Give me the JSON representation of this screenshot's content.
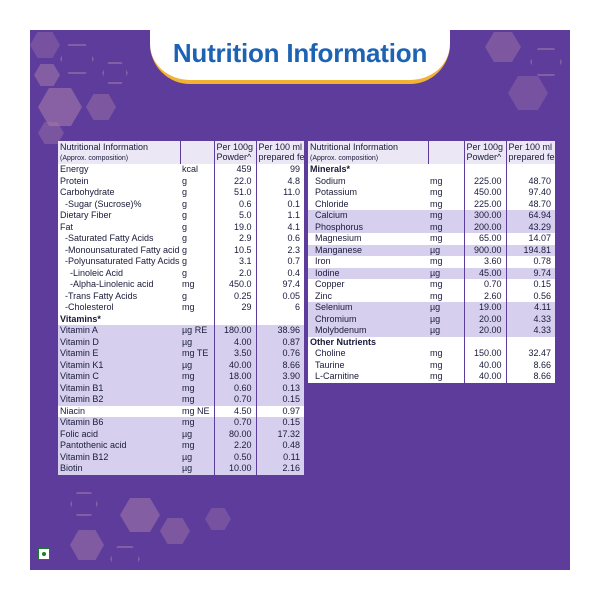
{
  "title": "Nutrition Information",
  "left_table": {
    "header": {
      "col1": "Nutritional Information",
      "col1_sub": "(Approx. composition)",
      "col2": "Per 100g",
      "col2b": "Powder^",
      "col3": "Per 100 ml",
      "col3b": "prepared feed"
    },
    "rows": [
      {
        "name": "Energy",
        "unit": "kcal",
        "v1": "459",
        "v2": "99",
        "style": "w"
      },
      {
        "name": "Protein",
        "unit": "g",
        "v1": "22.0",
        "v2": "4.8",
        "style": "w"
      },
      {
        "name": "Carbohydrate",
        "unit": "g",
        "v1": "51.0",
        "v2": "11.0",
        "style": "w"
      },
      {
        "name": "-Sugar (Sucrose)%",
        "unit": "g",
        "v1": "0.6",
        "v2": "0.1",
        "style": "w",
        "indent": 1
      },
      {
        "name": "Dietary Fiber",
        "unit": "g",
        "v1": "5.0",
        "v2": "1.1",
        "style": "w"
      },
      {
        "name": "Fat",
        "unit": "g",
        "v1": "19.0",
        "v2": "4.1",
        "style": "w"
      },
      {
        "name": "-Saturated Fatty Acids",
        "unit": "g",
        "v1": "2.9",
        "v2": "0.6",
        "style": "w",
        "indent": 1
      },
      {
        "name": "-Monounsaturated Fatty acids",
        "unit": "g",
        "v1": "10.5",
        "v2": "2.3",
        "style": "w",
        "indent": 1
      },
      {
        "name": "-Polyunsaturated Fatty Acids",
        "unit": "g",
        "v1": "3.1",
        "v2": "0.7",
        "style": "w",
        "indent": 1
      },
      {
        "name": "-Linoleic Acid",
        "unit": "g",
        "v1": "2.0",
        "v2": "0.4",
        "style": "w",
        "indent": 2
      },
      {
        "name": "-Alpha-Linolenic acid",
        "unit": "mg",
        "v1": "450.0",
        "v2": "97.4",
        "style": "w",
        "indent": 2
      },
      {
        "name": "-Trans Fatty Acids",
        "unit": "g",
        "v1": "0.25",
        "v2": "0.05",
        "style": "w",
        "indent": 1
      },
      {
        "name": "-Cholesterol",
        "unit": "mg",
        "v1": "29",
        "v2": "6",
        "style": "w",
        "indent": 1
      },
      {
        "name": "Vitamins*",
        "unit": "",
        "v1": "",
        "v2": "",
        "style": "h"
      },
      {
        "name": "Vitamin A",
        "unit": "µg RE",
        "v1": "180.00",
        "v2": "38.96",
        "style": "l"
      },
      {
        "name": "Vitamin D",
        "unit": "µg",
        "v1": "4.00",
        "v2": "0.87",
        "style": "l"
      },
      {
        "name": "Vitamin E",
        "unit": "mg TE",
        "v1": "3.50",
        "v2": "0.76",
        "style": "l"
      },
      {
        "name": "Vitamin K1",
        "unit": "µg",
        "v1": "40.00",
        "v2": "8.66",
        "style": "l"
      },
      {
        "name": "Vitamin C",
        "unit": "mg",
        "v1": "18.00",
        "v2": "3.90",
        "style": "l"
      },
      {
        "name": "Vitamin B1",
        "unit": "mg",
        "v1": "0.60",
        "v2": "0.13",
        "style": "l"
      },
      {
        "name": "Vitamin B2",
        "unit": "mg",
        "v1": "0.70",
        "v2": "0.15",
        "style": "l"
      },
      {
        "name": "Niacin",
        "unit": "mg NE",
        "v1": "4.50",
        "v2": "0.97",
        "style": "w"
      },
      {
        "name": "Vitamin B6",
        "unit": "mg",
        "v1": "0.70",
        "v2": "0.15",
        "style": "l"
      },
      {
        "name": "Folic acid",
        "unit": "µg",
        "v1": "80.00",
        "v2": "17.32",
        "style": "l"
      },
      {
        "name": "Pantothenic acid",
        "unit": "mg",
        "v1": "2.20",
        "v2": "0.48",
        "style": "l"
      },
      {
        "name": "Vitamin B12",
        "unit": "µg",
        "v1": "0.50",
        "v2": "0.11",
        "style": "l"
      },
      {
        "name": "Biotin",
        "unit": "µg",
        "v1": "10.00",
        "v2": "2.16",
        "style": "l"
      }
    ]
  },
  "right_table": {
    "header": {
      "col1": "Nutritional Information",
      "col1_sub": "(Approx. composition)",
      "col2": "Per 100g",
      "col2b": "Powder^",
      "col3": "Per 100 ml",
      "col3b": "prepared feed"
    },
    "rows": [
      {
        "name": "Minerals*",
        "unit": "",
        "v1": "",
        "v2": "",
        "style": "h"
      },
      {
        "name": "Sodium",
        "unit": "mg",
        "v1": "225.00",
        "v2": "48.70",
        "style": "w",
        "indent": 1
      },
      {
        "name": "Potassium",
        "unit": "mg",
        "v1": "450.00",
        "v2": "97.40",
        "style": "w",
        "indent": 1
      },
      {
        "name": "Chloride",
        "unit": "mg",
        "v1": "225.00",
        "v2": "48.70",
        "style": "w",
        "indent": 1
      },
      {
        "name": "Calcium",
        "unit": "mg",
        "v1": "300.00",
        "v2": "64.94",
        "style": "l",
        "indent": 1
      },
      {
        "name": "Phosphorus",
        "unit": "mg",
        "v1": "200.00",
        "v2": "43.29",
        "style": "l",
        "indent": 1
      },
      {
        "name": "Magnesium",
        "unit": "mg",
        "v1": "65.00",
        "v2": "14.07",
        "style": "w",
        "indent": 1
      },
      {
        "name": "Manganese",
        "unit": "µg",
        "v1": "900.00",
        "v2": "194.81",
        "style": "l",
        "indent": 1
      },
      {
        "name": "Iron",
        "unit": "mg",
        "v1": "3.60",
        "v2": "0.78",
        "style": "w",
        "indent": 1
      },
      {
        "name": "Iodine",
        "unit": "µg",
        "v1": "45.00",
        "v2": "9.74",
        "style": "l",
        "indent": 1
      },
      {
        "name": "Copper",
        "unit": "mg",
        "v1": "0.70",
        "v2": "0.15",
        "style": "w",
        "indent": 1
      },
      {
        "name": "Zinc",
        "unit": "mg",
        "v1": "2.60",
        "v2": "0.56",
        "style": "w",
        "indent": 1
      },
      {
        "name": "Selenium",
        "unit": "µg",
        "v1": "19.00",
        "v2": "4.11",
        "style": "l",
        "indent": 1
      },
      {
        "name": "Chromium",
        "unit": "µg",
        "v1": "20.00",
        "v2": "4.33",
        "style": "l",
        "indent": 1
      },
      {
        "name": "Molybdenum",
        "unit": "µg",
        "v1": "20.00",
        "v2": "4.33",
        "style": "l",
        "indent": 1
      },
      {
        "name": "Other Nutrients",
        "unit": "",
        "v1": "",
        "v2": "",
        "style": "h"
      },
      {
        "name": "Choline",
        "unit": "mg",
        "v1": "150.00",
        "v2": "32.47",
        "style": "w",
        "indent": 1
      },
      {
        "name": "Taurine",
        "unit": "mg",
        "v1": "40.00",
        "v2": "8.66",
        "style": "w",
        "indent": 1
      },
      {
        "name": "L-Carnitine",
        "unit": "mg",
        "v1": "40.00",
        "v2": "8.66",
        "style": "w",
        "indent": 1
      }
    ]
  },
  "colors": {
    "background": "#5e3c9c",
    "title": "#1d63b4",
    "banner_accent": "#f2b233",
    "row_light": "#d6d0ee",
    "header_bg": "#ebe7f5",
    "veg_mark": "#1e7b2f"
  },
  "icons": {
    "veg_mark": "veg-symbol-icon"
  }
}
